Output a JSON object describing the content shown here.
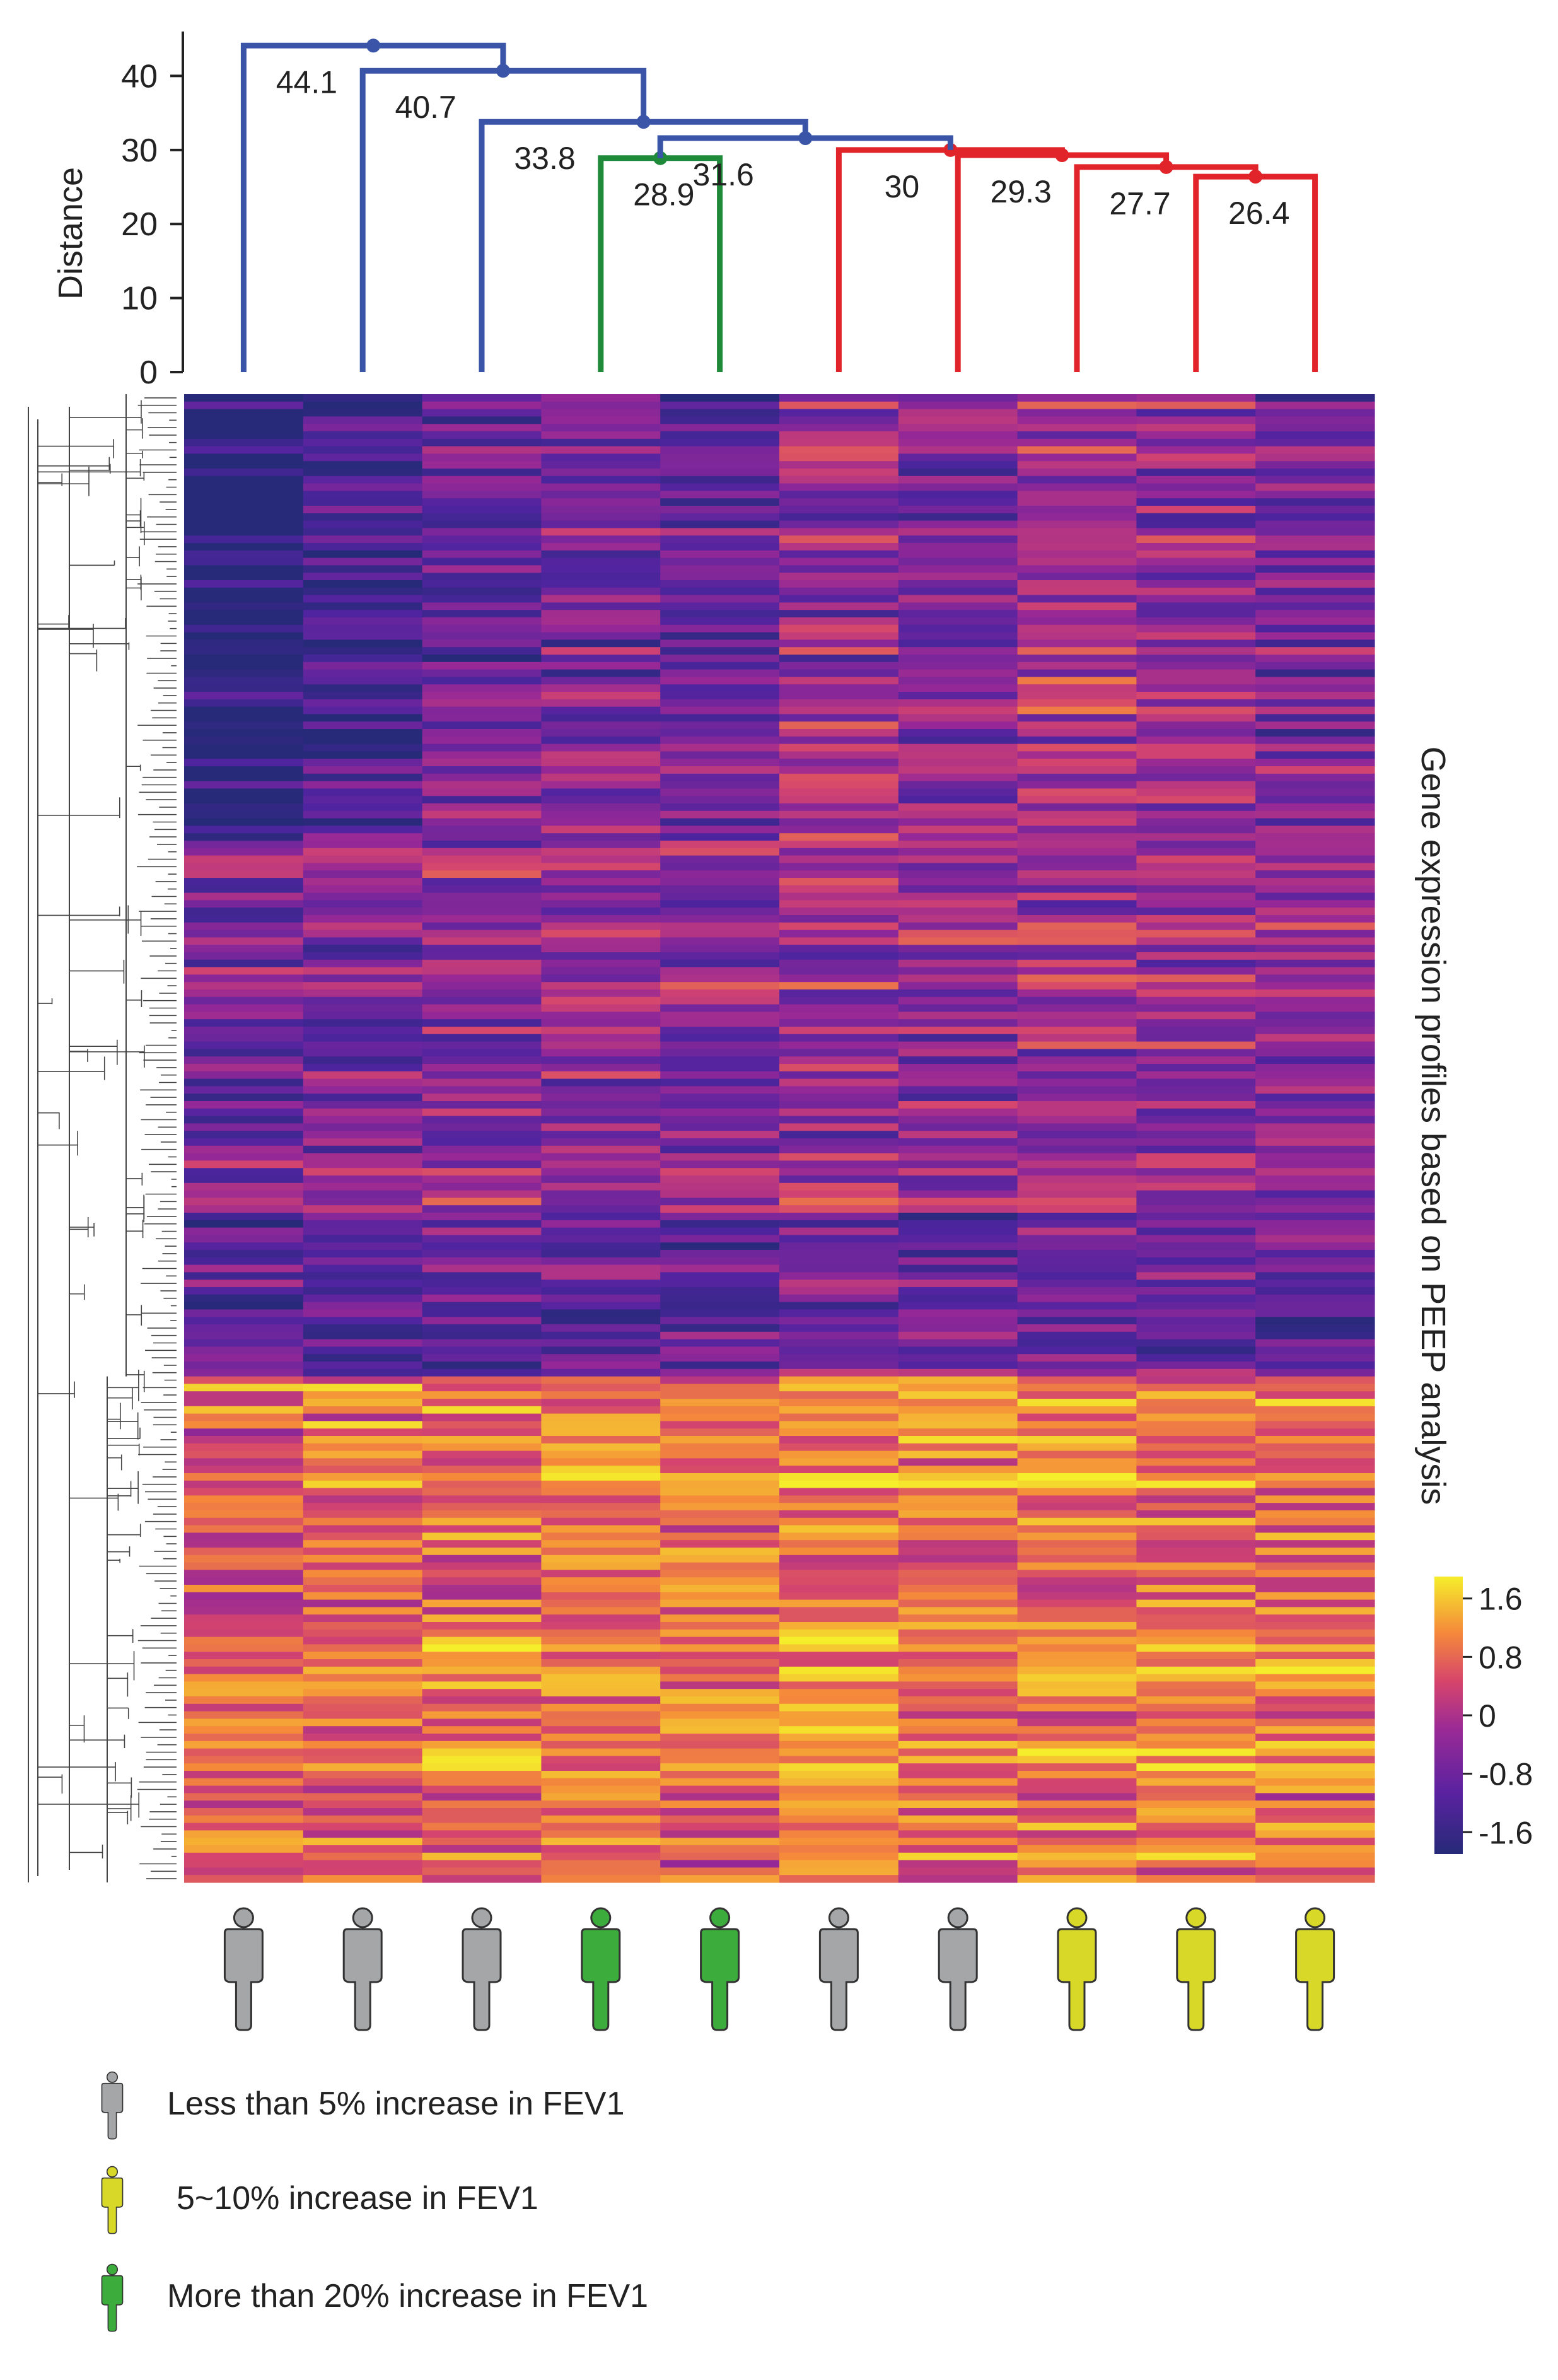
{
  "chart_data": {
    "type": "heatmap",
    "ylabel_right": "Gene expression profiles based on PEEP analysis",
    "dendrogram": {
      "ylabel": "Distance",
      "yticks": [
        0,
        10,
        20,
        30,
        40
      ],
      "ylim": [
        0,
        46
      ],
      "leaf_count": 10,
      "merges": [
        {
          "a": 8,
          "b": 9,
          "height": 26.4,
          "label": "26.4",
          "cluster": "red"
        },
        {
          "a": 7,
          "b": "m0",
          "height": 27.7,
          "label": "27.7",
          "cluster": "red"
        },
        {
          "a": 6,
          "b": "m1",
          "height": 29.3,
          "label": "29.3",
          "cluster": "red"
        },
        {
          "a": 5,
          "b": "m2",
          "height": 30.0,
          "label": "30",
          "cluster": "red"
        },
        {
          "a": 3,
          "b": 4,
          "height": 28.9,
          "label": "28.9",
          "cluster": "green"
        },
        {
          "a": "m4",
          "b": "m3",
          "height": 31.6,
          "label": "31.6",
          "cluster": "blue"
        },
        {
          "a": 2,
          "b": "m5",
          "height": 33.8,
          "label": "33.8",
          "cluster": "blue"
        },
        {
          "a": 1,
          "b": "m6",
          "height": 40.7,
          "label": "40.7",
          "cluster": "blue"
        },
        {
          "a": 0,
          "b": "m7",
          "height": 44.1,
          "label": "44.1",
          "cluster": "blue"
        }
      ]
    },
    "colorbar": {
      "ticks": [
        "1.6",
        "0.8",
        "0",
        "-0.8",
        "-1.6"
      ],
      "range": [
        -1.9,
        1.9
      ],
      "colormap": "plasma-like"
    },
    "heatmap": {
      "columns": 10,
      "rows": 200,
      "column_groups": [
        "gray",
        "gray",
        "gray",
        "green",
        "green",
        "gray",
        "gray",
        "yellow",
        "yellow",
        "yellow"
      ]
    }
  },
  "legend": {
    "items": [
      {
        "group": "gray",
        "label": "Less than 5% increase in FEV1"
      },
      {
        "group": "yellow",
        "label": "5~10% increase in FEV1"
      },
      {
        "group": "green",
        "label": "More than 20% increase in FEV1"
      }
    ]
  },
  "colors": {
    "blue_cluster": "#3a55a8",
    "green_cluster": "#1f8a3a",
    "red_cluster": "#e0242a",
    "gray_person": "#a4a6a8",
    "green_person": "#3cad3c",
    "yellow_person": "#d8d828",
    "heat_low": "#262a78",
    "heat_mid": "#b12a90",
    "heat_high": "#f5ee2b"
  }
}
